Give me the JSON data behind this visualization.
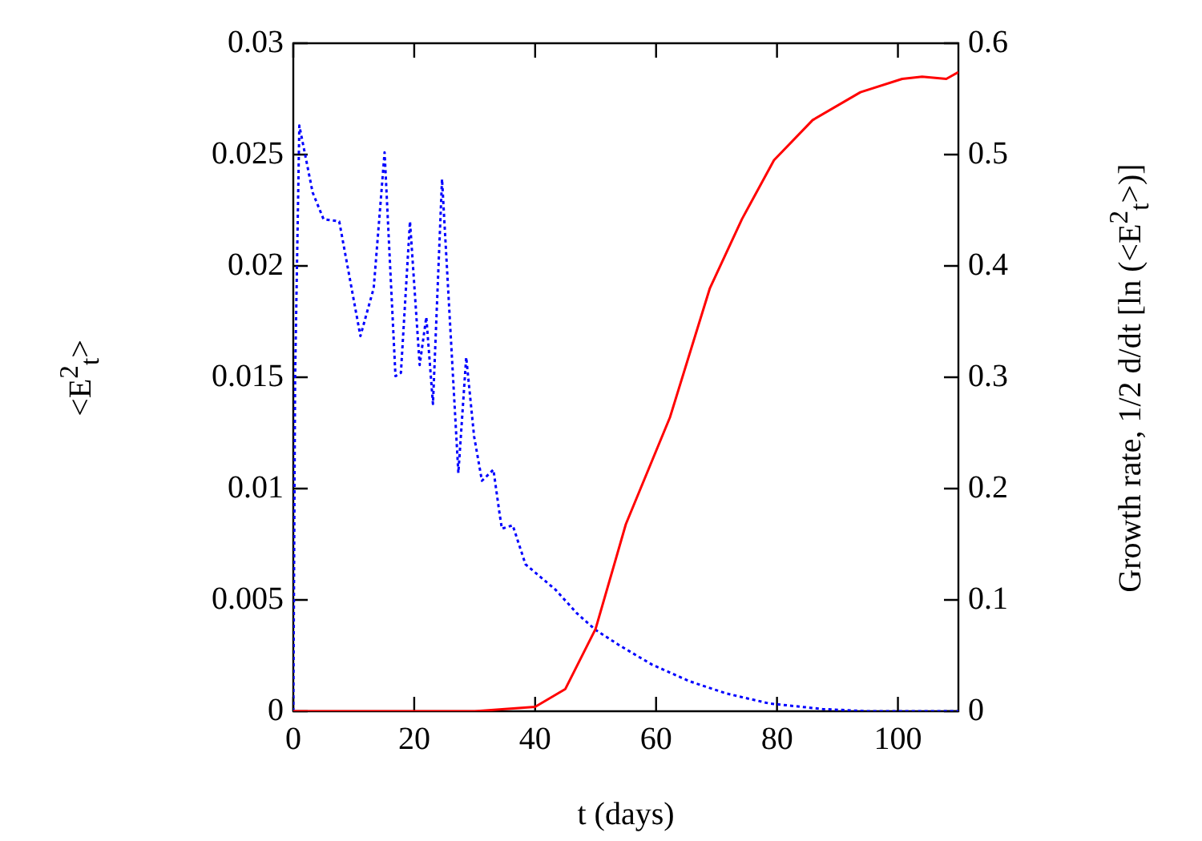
{
  "chart_data": {
    "type": "line",
    "xlabel": "t (days)",
    "ylabel": "<E$^{2}$$_{t}$>",
    "y2label": "Growth rate, 1/2 d/dt [ln (<E$^{2}$$_{t}$>)]",
    "xlim": [
      0,
      110
    ],
    "xticks": [
      0,
      20,
      40,
      60,
      80,
      100
    ],
    "ylim": [
      0,
      0.03
    ],
    "yticks": [
      0,
      0.005,
      0.01,
      0.015,
      0.02,
      0.025,
      0.03
    ],
    "y2lim": [
      0,
      0.6
    ],
    "y2ticks": [
      0,
      0.1,
      0.2,
      0.3,
      0.4,
      0.5,
      0.6
    ],
    "grid": false,
    "legend": false,
    "marker": "none",
    "series": [
      {
        "color": "#ff0000",
        "line_style": "solid",
        "x": [
          0,
          10,
          20,
          30,
          35,
          40,
          45,
          50,
          55,
          62.3,
          68.9,
          74.2,
          79.5,
          85.9,
          93.8,
          100.7,
          104,
          108,
          110
        ],
        "values": [
          0,
          0,
          0,
          0,
          0.0001,
          0.0002,
          0.001,
          0.0037,
          0.0084,
          0.0132,
          0.019,
          0.0221,
          0.02475,
          0.02655,
          0.0278,
          0.0284,
          0.0285,
          0.0284,
          0.0287
        ]
      },
      {
        "axis": "y2",
        "color": "#0000ff",
        "line_style": "dotted",
        "x": [
          0,
          0.3,
          1.0,
          3.2,
          5.0,
          7.6,
          11.1,
          13.3,
          15.1,
          16.9,
          17.8,
          19.3,
          20.9,
          22,
          23.1,
          24.6,
          27.3,
          28.6,
          29.9,
          31.2,
          33.1,
          34.1,
          34.5,
          36.3,
          38.4,
          40.8,
          43.4,
          46.9,
          50,
          54,
          59.3,
          65.5,
          71.6,
          78.7,
          87.5,
          95,
          110
        ],
        "values": [
          0,
          0.3,
          0.526,
          0.466,
          0.442,
          0.44,
          0.337,
          0.38,
          0.502,
          0.301,
          0.304,
          0.44,
          0.311,
          0.354,
          0.276,
          0.478,
          0.214,
          0.318,
          0.247,
          0.207,
          0.217,
          0.178,
          0.164,
          0.167,
          0.132,
          0.121,
          0.109,
          0.088,
          0.073,
          0.059,
          0.042,
          0.027,
          0.016,
          0.007,
          0.002,
          0,
          0
        ]
      }
    ]
  }
}
